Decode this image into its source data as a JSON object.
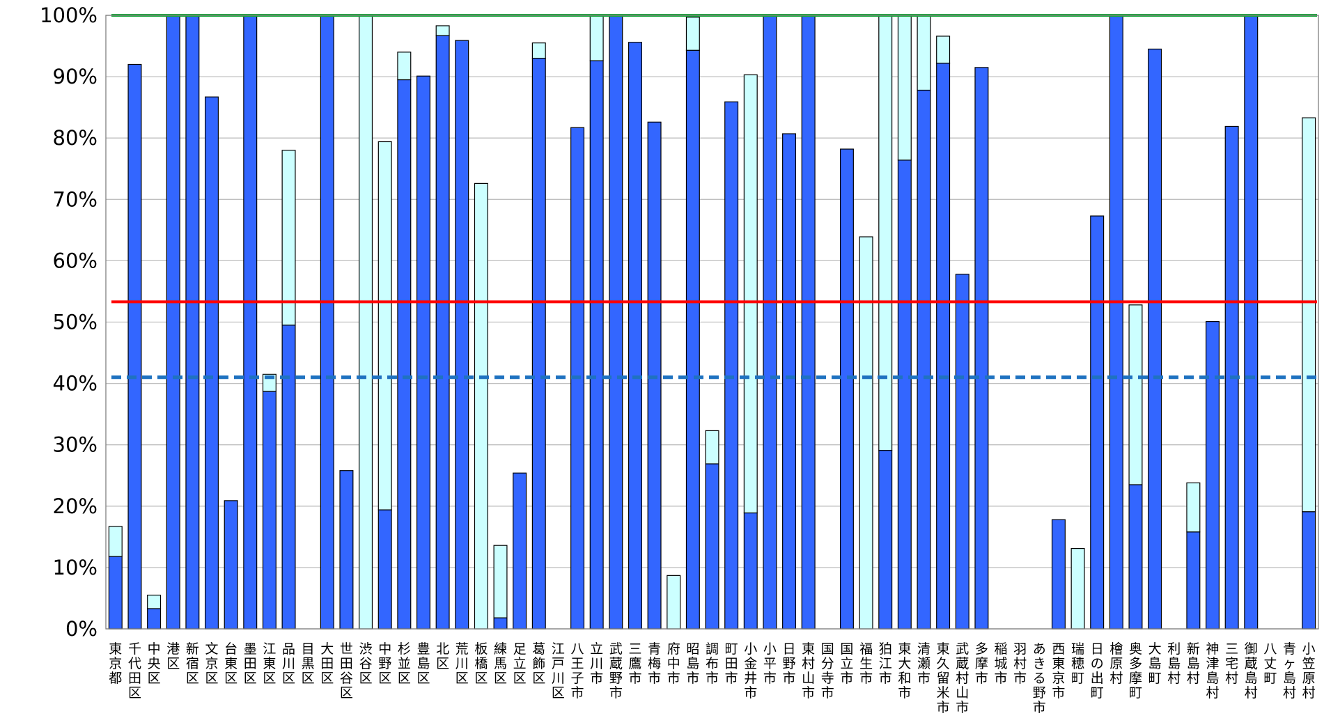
{
  "chart_data": {
    "type": "bar",
    "title": "",
    "xlabel": "",
    "ylabel": "",
    "ylim": [
      0,
      100
    ],
    "y_ticks": [
      "0%",
      "10%",
      "20%",
      "30%",
      "40%",
      "50%",
      "60%",
      "70%",
      "80%",
      "90%",
      "100%"
    ],
    "grid": true,
    "categories": [
      "東京都",
      "千代田区",
      "中央区",
      "港区",
      "新宿区",
      "文京区",
      "台東区",
      "墨田区",
      "江東区",
      "品川区",
      "目黒区",
      "大田区",
      "世田谷区",
      "渋谷区",
      "中野区",
      "杉並区",
      "豊島区",
      "北区",
      "荒川区",
      "板橋区",
      "練馬区",
      "足立区",
      "葛飾区",
      "江戸川区",
      "八王子市",
      "立川市",
      "武蔵野市",
      "三鷹市",
      "青梅市",
      "府中市",
      "昭島市",
      "調布市",
      "町田市",
      "小金井市",
      "小平市",
      "日野市",
      "東村山市",
      "国分寺市",
      "国立市",
      "福生市",
      "狛江市",
      "東大和市",
      "清瀬市",
      "東久留米市",
      "武蔵村山市",
      "多摩市",
      "稲城市",
      "羽村市",
      "あきる野市",
      "西東京市",
      "瑞穂町",
      "日の出町",
      "檜原村",
      "奥多摩町",
      "大島町",
      "利島村",
      "新島村",
      "神津島村",
      "三宅村",
      "御蔵島村",
      "八丈町",
      "青ヶ島村",
      "小笠原村"
    ],
    "series": [
      {
        "values": [
          11.8,
          92,
          3.3,
          100,
          100,
          86.7,
          20.9,
          100,
          38.7,
          49.5,
          0,
          100,
          25.8,
          0,
          19.4,
          89.5,
          90.1,
          96.7,
          95.9,
          0,
          1.8,
          25.4,
          93,
          0,
          81.7,
          92.6,
          100,
          95.6,
          82.6,
          0,
          94.3,
          26.9,
          85.9,
          18.9,
          100,
          80.7,
          100,
          0,
          78.2,
          0,
          29.1,
          76.4,
          87.8,
          92.2,
          57.8,
          91.5,
          0,
          0,
          0,
          17.8,
          0,
          67.3,
          100,
          23.5,
          94.5,
          0,
          15.8,
          50.1,
          81.9,
          100,
          0,
          0,
          19.1
        ]
      },
      {
        "values": [
          4.9,
          0,
          2.2,
          0,
          0,
          0,
          0,
          0,
          2.8,
          28.5,
          0,
          0,
          0,
          100,
          60,
          4.5,
          0,
          1.6,
          0,
          72.6,
          11.8,
          0,
          2.5,
          0,
          0,
          7.4,
          0,
          0,
          0,
          8.7,
          5.4,
          5.4,
          0,
          71.4,
          0,
          0,
          0,
          0,
          0,
          63.9,
          70.9,
          23.6,
          12.2,
          4.4,
          0,
          0,
          0,
          0,
          0,
          0,
          13.1,
          0,
          0,
          29.3,
          0,
          0,
          8,
          0,
          0,
          0,
          0,
          0,
          64.2
        ]
      }
    ],
    "reference_lines": [
      {
        "value": 100,
        "color": "#1aa83c",
        "style": "solid"
      },
      {
        "value": 53.3,
        "color": "#ff0000",
        "style": "solid"
      },
      {
        "value": 41,
        "color": "#1f72c0",
        "style": "dashed"
      }
    ],
    "colors": {
      "series_1": "#3366ff",
      "series_2": "#ccffff",
      "bar_edge": "#000000",
      "grid": "#bfbfbf"
    }
  }
}
